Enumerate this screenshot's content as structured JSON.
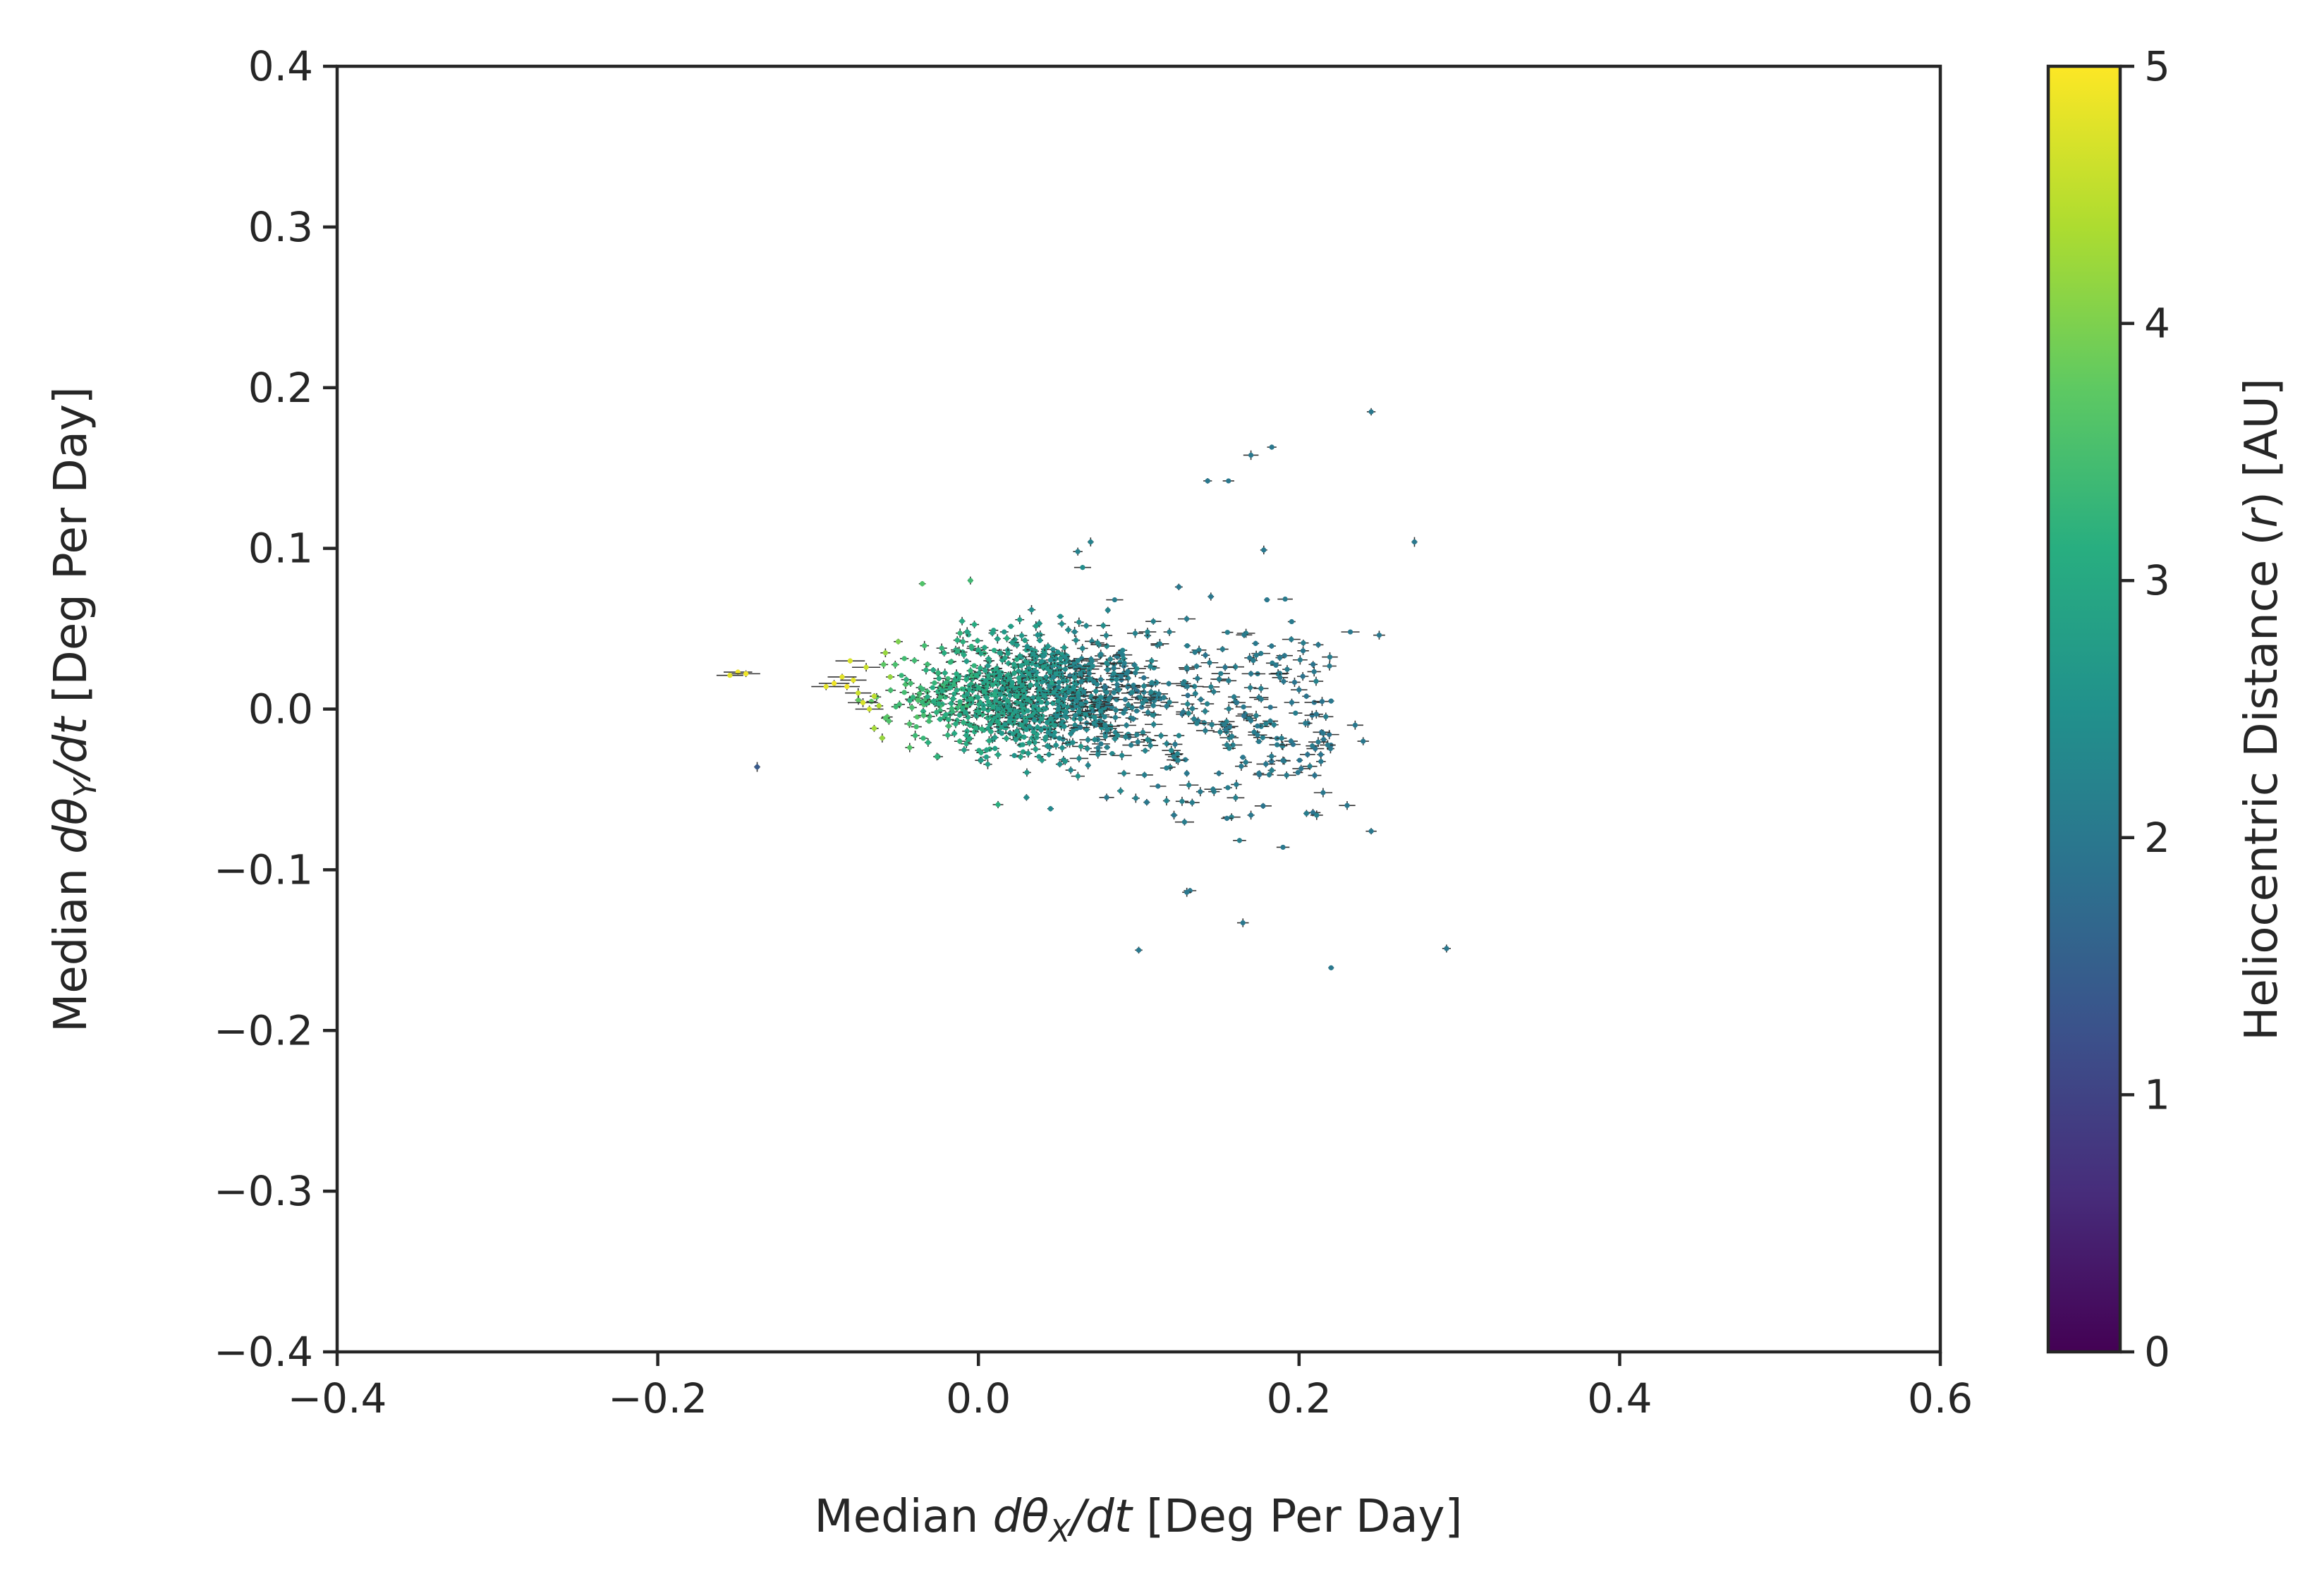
{
  "chart_data": {
    "type": "scatter",
    "xlabel": {
      "pre": "Median ",
      "math": "dθ",
      "sub": "X",
      "math2": "/dt",
      "post": " [Deg Per Day]"
    },
    "ylabel": {
      "pre": "Median ",
      "math": "dθ",
      "sub": "Y",
      "math2": "/dt",
      "post": " [Deg Per Day]"
    },
    "colorbar_label": {
      "pre": "Heliocentric Distance (",
      "math": "r",
      "post": ") [AU]"
    },
    "xlim": [
      -0.4,
      0.6
    ],
    "ylim": [
      -0.4,
      0.4
    ],
    "colorbar_range": [
      0,
      5
    ],
    "colormap": "viridis",
    "x_ticks": [
      "−0.4",
      "−0.2",
      "0.0",
      "0.2",
      "0.4",
      "0.6"
    ],
    "y_ticks": [
      "−0.4",
      "−0.3",
      "−0.2",
      "−0.1",
      "0.0",
      "0.1",
      "0.2",
      "0.3",
      "0.4"
    ],
    "colorbar_ticks": [
      "0",
      "1",
      "2",
      "3",
      "4",
      "5"
    ],
    "grid": false,
    "error_bars": true,
    "points": [
      {
        "x": 0.245,
        "y": 0.185,
        "r": 2.0
      },
      {
        "x": 0.183,
        "y": 0.163,
        "r": 2.0
      },
      {
        "x": 0.17,
        "y": 0.158,
        "r": 2.0
      },
      {
        "x": 0.143,
        "y": 0.142,
        "r": 2.0
      },
      {
        "x": 0.156,
        "y": 0.142,
        "r": 2.0
      },
      {
        "x": 0.272,
        "y": 0.104,
        "r": 2.0
      },
      {
        "x": 0.07,
        "y": 0.104,
        "r": 2.2
      },
      {
        "x": 0.062,
        "y": 0.098,
        "r": 2.2
      },
      {
        "x": 0.178,
        "y": 0.099,
        "r": 2.0
      },
      {
        "x": -0.035,
        "y": 0.078,
        "r": 3.6
      },
      {
        "x": -0.005,
        "y": 0.08,
        "r": 3.4
      },
      {
        "x": 0.125,
        "y": 0.076,
        "r": 2.0
      },
      {
        "x": 0.085,
        "y": 0.068,
        "r": 2.1
      },
      {
        "x": 0.145,
        "y": 0.07,
        "r": 2.0
      },
      {
        "x": 0.18,
        "y": 0.068,
        "r": 2.0
      },
      {
        "x": 0.25,
        "y": 0.046,
        "r": 2.0
      },
      {
        "x": 0.232,
        "y": 0.048,
        "r": 2.0
      },
      {
        "x": 0.212,
        "y": 0.04,
        "r": 2.0
      },
      {
        "x": 0.188,
        "y": 0.032,
        "r": 2.0
      },
      {
        "x": 0.17,
        "y": 0.022,
        "r": 2.0
      },
      {
        "x": 0.2,
        "y": 0.012,
        "r": 2.0
      },
      {
        "x": 0.22,
        "y": 0.005,
        "r": 2.0
      },
      {
        "x": 0.235,
        "y": -0.01,
        "r": 2.0
      },
      {
        "x": 0.215,
        "y": -0.015,
        "r": 2.0
      },
      {
        "x": 0.195,
        "y": -0.02,
        "r": 2.0
      },
      {
        "x": 0.24,
        "y": -0.02,
        "r": 2.0
      },
      {
        "x": 0.175,
        "y": -0.04,
        "r": 2.0
      },
      {
        "x": 0.19,
        "y": -0.032,
        "r": 2.0
      },
      {
        "x": 0.165,
        "y": -0.03,
        "r": 2.0
      },
      {
        "x": 0.15,
        "y": -0.04,
        "r": 2.0
      },
      {
        "x": 0.13,
        "y": -0.04,
        "r": 2.0
      },
      {
        "x": 0.112,
        "y": -0.048,
        "r": 2.0
      },
      {
        "x": 0.215,
        "y": -0.052,
        "r": 2.0
      },
      {
        "x": 0.23,
        "y": -0.06,
        "r": 2.0
      },
      {
        "x": 0.245,
        "y": -0.076,
        "r": 2.0
      },
      {
        "x": 0.17,
        "y": -0.066,
        "r": 2.0
      },
      {
        "x": 0.155,
        "y": -0.068,
        "r": 2.0
      },
      {
        "x": 0.122,
        "y": -0.066,
        "r": 2.0
      },
      {
        "x": 0.105,
        "y": -0.058,
        "r": 2.0
      },
      {
        "x": 0.08,
        "y": -0.055,
        "r": 2.0
      },
      {
        "x": 0.045,
        "y": -0.062,
        "r": 2.3
      },
      {
        "x": 0.03,
        "y": -0.055,
        "r": 2.4
      },
      {
        "x": 0.19,
        "y": -0.086,
        "r": 2.0
      },
      {
        "x": 0.132,
        "y": -0.113,
        "r": 2.0
      },
      {
        "x": 0.13,
        "y": -0.114,
        "r": 2.0
      },
      {
        "x": 0.165,
        "y": -0.133,
        "r": 2.0
      },
      {
        "x": 0.1,
        "y": -0.15,
        "r": 2.0
      },
      {
        "x": 0.292,
        "y": -0.149,
        "r": 2.0
      },
      {
        "x": 0.22,
        "y": -0.161,
        "r": 2.0
      },
      {
        "x": -0.138,
        "y": -0.036,
        "r": 1.4
      },
      {
        "x": -0.15,
        "y": 0.023,
        "r": 4.9
      },
      {
        "x": -0.155,
        "y": 0.021,
        "r": 4.8
      },
      {
        "x": -0.145,
        "y": 0.022,
        "r": 4.9
      },
      {
        "x": -0.09,
        "y": 0.016,
        "r": 4.9
      },
      {
        "x": -0.085,
        "y": 0.02,
        "r": 4.8
      },
      {
        "x": -0.082,
        "y": 0.014,
        "r": 4.9
      },
      {
        "x": -0.078,
        "y": 0.018,
        "r": 4.8
      },
      {
        "x": -0.08,
        "y": 0.03,
        "r": 4.7
      },
      {
        "x": -0.075,
        "y": 0.01,
        "r": 4.6
      },
      {
        "x": -0.072,
        "y": 0.004,
        "r": 4.7
      },
      {
        "x": -0.068,
        "y": 0.0,
        "r": 4.6
      },
      {
        "x": -0.065,
        "y": 0.008,
        "r": 4.5
      },
      {
        "x": -0.062,
        "y": 0.002,
        "r": 4.4
      },
      {
        "x": -0.095,
        "y": 0.014,
        "r": 4.8
      },
      {
        "x": -0.07,
        "y": 0.026,
        "r": 4.6
      },
      {
        "x": -0.065,
        "y": -0.012,
        "r": 4.3
      },
      {
        "x": -0.06,
        "y": -0.018,
        "r": 4.2
      },
      {
        "x": -0.058,
        "y": 0.035,
        "r": 4.2
      },
      {
        "x": -0.055,
        "y": 0.02,
        "r": 4.2
      },
      {
        "x": -0.05,
        "y": 0.042,
        "r": 4.0
      }
    ],
    "cluster": {
      "core_center": [
        0.03,
        0.01
      ],
      "core_spread": [
        0.035,
        0.018
      ],
      "tail_range_x": [
        0.06,
        0.22
      ],
      "tail_spread_y": 0.03,
      "n_core": 900,
      "n_tail": 280
    }
  }
}
